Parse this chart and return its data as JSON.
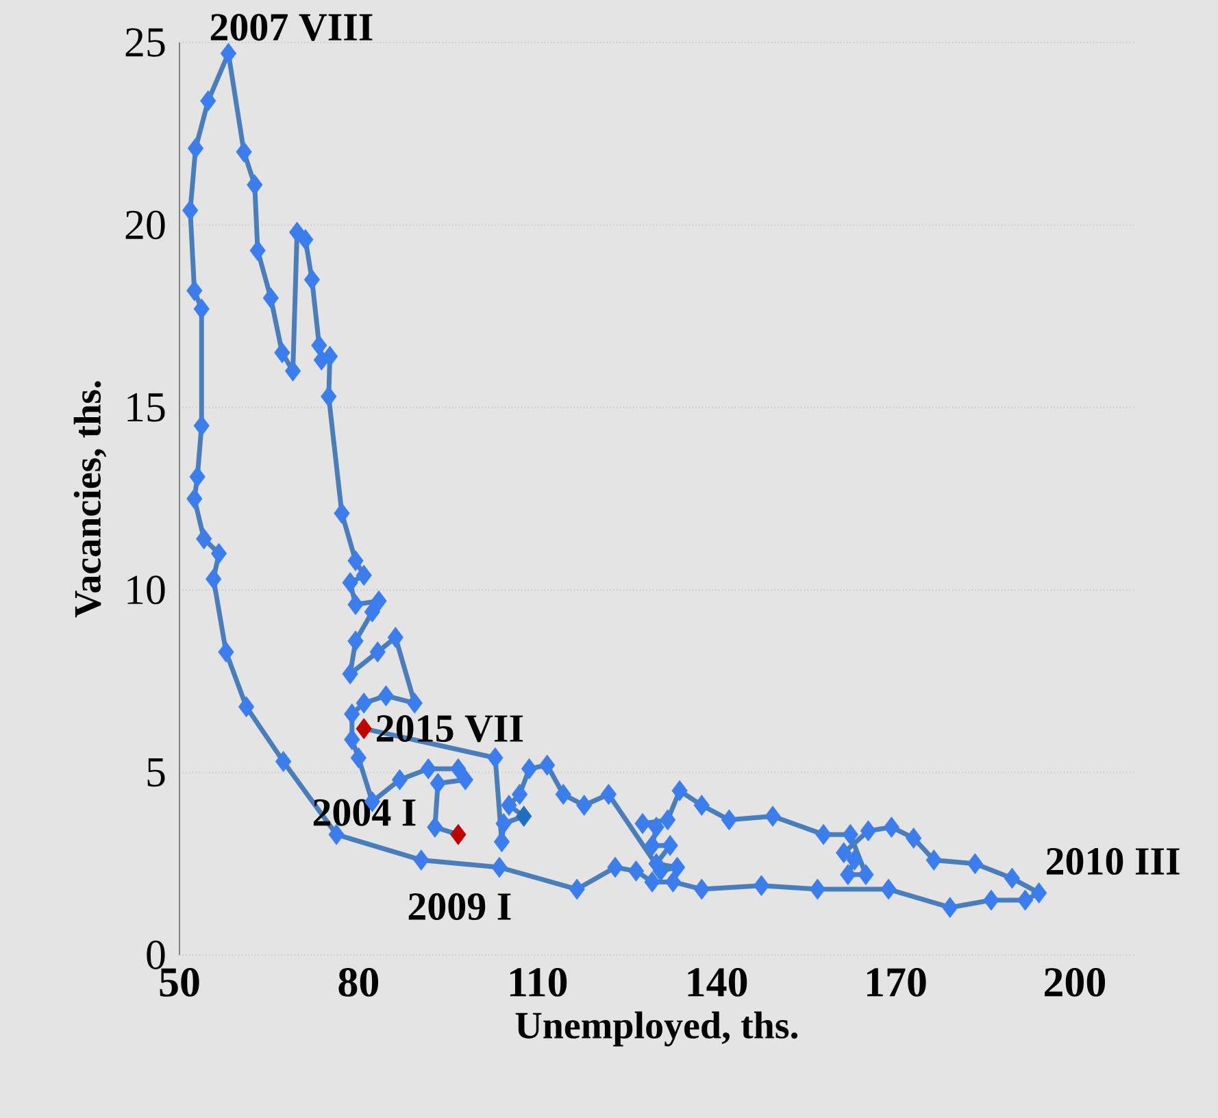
{
  "chart_data": {
    "type": "line",
    "xlabel": "Unemployed, ths.",
    "ylabel": "Vacancies, ths.",
    "xlim": [
      50,
      210
    ],
    "xticks": [
      50,
      80,
      110,
      140,
      170,
      200
    ],
    "ylim": [
      0,
      25
    ],
    "yticks": [
      0,
      5,
      10,
      15,
      20,
      25
    ],
    "grid": "y",
    "marker": "diamond",
    "line_style": "solid",
    "series": [
      {
        "color": "#4a7ebb",
        "x": [
          96.7,
          92.8,
          93.3,
          97.9,
          96.7,
          91.7,
          86.9,
          82.3,
          80.0,
          78.9,
          78.9,
          80.9,
          84.6,
          89.4,
          86.2,
          83.2,
          78.6,
          79.5,
          82.3,
          83.4,
          79.5,
          78.6,
          80.9,
          79.5,
          77.2,
          75.0,
          75.2,
          73.8,
          73.4,
          72.2,
          71.1,
          69.7,
          69.0,
          67.2,
          65.3,
          63.1,
          62.6,
          60.8,
          58.2,
          54.8,
          52.7,
          51.8,
          52.5,
          53.7,
          53.7,
          53.0,
          52.5,
          54.1,
          56.6,
          55.7,
          57.8,
          61.2,
          67.4,
          76.3,
          90.5,
          103.6,
          116.6,
          123.0,
          126.5,
          129.2,
          132.7,
          137.5,
          147.5,
          156.9,
          168.8,
          179.1,
          186.0,
          191.7,
          194.0,
          189.5,
          183.3,
          176.4,
          173.0,
          169.3,
          165.4,
          161.3,
          163.1,
          162.0,
          165.0,
          162.4,
          157.9,
          149.4,
          142.1,
          137.5,
          133.8,
          131.8,
          127.6,
          129.9,
          129.2,
          132.2,
          129.9,
          133.4,
          130.6,
          121.9,
          117.8,
          114.3,
          111.6,
          108.6,
          107.0,
          105.2,
          107.7,
          104.3,
          104.0,
          102.9,
          80.9
        ],
        "values": [
          3.3,
          3.5,
          4.7,
          4.8,
          5.1,
          5.1,
          4.8,
          4.2,
          5.4,
          5.9,
          6.6,
          6.9,
          7.1,
          6.9,
          8.7,
          8.3,
          7.7,
          8.6,
          9.4,
          9.7,
          9.6,
          10.2,
          10.4,
          10.8,
          12.1,
          15.3,
          16.4,
          16.3,
          16.7,
          18.5,
          19.6,
          19.8,
          16.0,
          16.5,
          18.0,
          19.3,
          21.1,
          22.0,
          24.7,
          23.4,
          22.1,
          20.4,
          18.2,
          17.7,
          14.5,
          13.1,
          12.5,
          11.4,
          11.0,
          10.3,
          8.3,
          6.8,
          5.3,
          3.3,
          2.6,
          2.4,
          1.8,
          2.4,
          2.3,
          2.0,
          2.0,
          1.8,
          1.9,
          1.8,
          1.8,
          1.3,
          1.5,
          1.5,
          1.7,
          2.1,
          2.5,
          2.6,
          3.2,
          3.5,
          3.4,
          2.8,
          2.6,
          2.2,
          2.2,
          3.3,
          3.3,
          3.8,
          3.7,
          4.1,
          4.5,
          3.7,
          3.6,
          3.5,
          3.0,
          3.0,
          2.5,
          2.4,
          2.3,
          4.4,
          4.1,
          4.4,
          5.2,
          5.1,
          4.4,
          4.1,
          3.8,
          3.6,
          3.1,
          5.4,
          6.2
        ],
        "colors": [
          "#c00000",
          "#3b7ded",
          "#3b7ded",
          "#3b7ded",
          "#3b7ded",
          "#3b7ded",
          "#3b7ded",
          "#3b7ded",
          "#3b7ded",
          "#3b7ded",
          "#3b7ded",
          "#3b7ded",
          "#3b7ded",
          "#3b7ded",
          "#3b7ded",
          "#3b7ded",
          "#3b7ded",
          "#3b7ded",
          "#3b7ded",
          "#3b7ded",
          "#3b7ded",
          "#3b7ded",
          "#3b7ded",
          "#3b7ded",
          "#3b7ded",
          "#3b7ded",
          "#3b7ded",
          "#3b7ded",
          "#3b7ded",
          "#3b7ded",
          "#3b7ded",
          "#3b7ded",
          "#3b7ded",
          "#3b7ded",
          "#3b7ded",
          "#3b7ded",
          "#3b7ded",
          "#3b7ded",
          "#3b7ded",
          "#3b7ded",
          "#3b7ded",
          "#3b7ded",
          "#3b7ded",
          "#3b7ded",
          "#3b7ded",
          "#3b7ded",
          "#3b7ded",
          "#3b7ded",
          "#3b7ded",
          "#3b7ded",
          "#3b7ded",
          "#3b7ded",
          "#3b7ded",
          "#3b7ded",
          "#3b7ded",
          "#3b7ded",
          "#3b7ded",
          "#3b7ded",
          "#3b7ded",
          "#3b7ded",
          "#3b7ded",
          "#3b7ded",
          "#3b7ded",
          "#3b7ded",
          "#3b7ded",
          "#3b7ded",
          "#3b7ded",
          "#3b7ded",
          "#3b7ded",
          "#3b7ded",
          "#3b7ded",
          "#3b7ded",
          "#3b7ded",
          "#3b7ded",
          "#3b7ded",
          "#3b7ded",
          "#3b7ded",
          "#3b7ded",
          "#3b7ded",
          "#3b7ded",
          "#3b7ded",
          "#3b7ded",
          "#3b7ded",
          "#3b7ded",
          "#3b7ded",
          "#3b7ded",
          "#3b7ded",
          "#3b7ded",
          "#3b7ded",
          "#3b7ded",
          "#3b7ded",
          "#3b7ded",
          "#3b7ded",
          "#3b7ded",
          "#3b7ded",
          "#3b7ded",
          "#3b7ded",
          "#3b7ded",
          "#3b7ded",
          "#3b7ded",
          "#1f6fc0",
          "#3b7ded",
          "#3b7ded",
          "#3b7ded",
          "#c00000"
        ]
      }
    ],
    "annotations": [
      {
        "text": "2007 VIII",
        "x": 58.2,
        "y": 24.7
      },
      {
        "text": "2015 VII",
        "x": 80.9,
        "y": 6.2
      },
      {
        "text": "2004 I",
        "x": 96.7,
        "y": 3.3
      },
      {
        "text": "2009 I",
        "x": 90.5,
        "y": 2.6
      },
      {
        "text": "2010 III",
        "x": 194.0,
        "y": 1.7
      }
    ]
  }
}
